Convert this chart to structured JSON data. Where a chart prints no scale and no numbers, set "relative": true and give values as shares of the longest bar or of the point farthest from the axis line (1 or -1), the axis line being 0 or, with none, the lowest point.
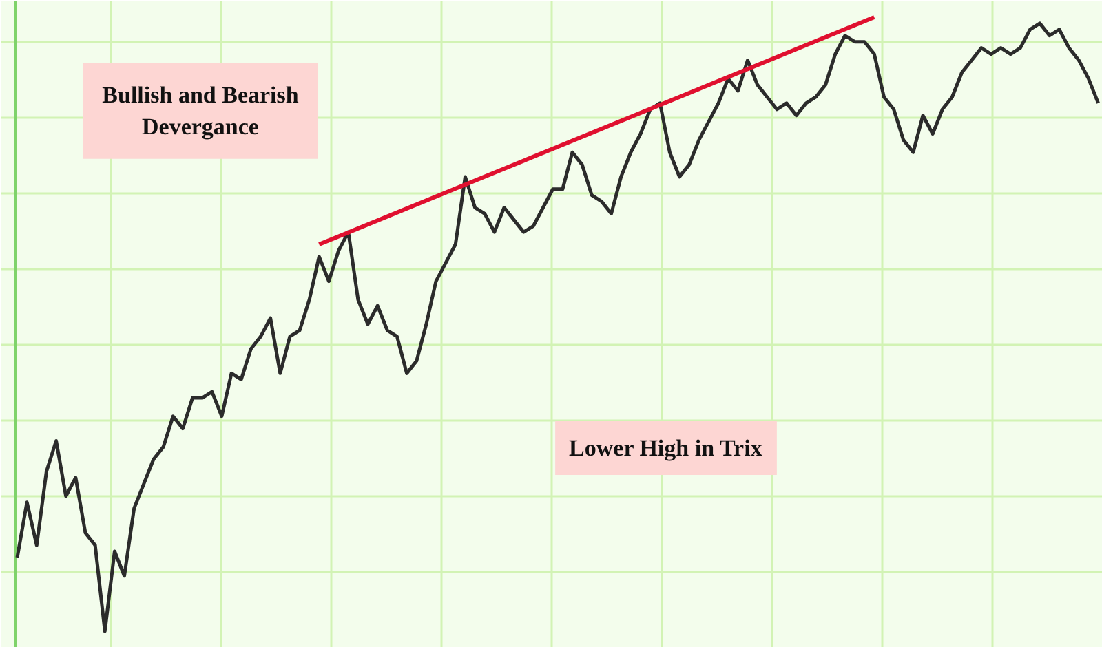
{
  "chart_data": {
    "type": "line",
    "relative": true,
    "grid": true,
    "marker": "none",
    "line_style": "solid",
    "categories": [
      null,
      null,
      null,
      null,
      null,
      null,
      null,
      null,
      null,
      null,
      null,
      null,
      null,
      null,
      null,
      null,
      null,
      null,
      null,
      null,
      null,
      null,
      null,
      null,
      null,
      null,
      null,
      null,
      null,
      null,
      null,
      null,
      null,
      null,
      null,
      null,
      null,
      null,
      null,
      null,
      null,
      null,
      null,
      null,
      null,
      null,
      null,
      null,
      null,
      null,
      null,
      null,
      null,
      null,
      null,
      null,
      null,
      null,
      null,
      null,
      null,
      null,
      null,
      null,
      null,
      null,
      null,
      null,
      null,
      null,
      null,
      null,
      null,
      null,
      null,
      null,
      null,
      null,
      null,
      null,
      null,
      null,
      null,
      null,
      null,
      null,
      null,
      null,
      null,
      null,
      null,
      null,
      null,
      null,
      null,
      null,
      null,
      null,
      null,
      null,
      null,
      null,
      null,
      null,
      null,
      null,
      null,
      null,
      null,
      null,
      null,
      null
    ],
    "series": [
      {
        "color": "#2b2b2b",
        "values": [
          0.12,
          0.21,
          0.14,
          0.26,
          0.31,
          0.22,
          0.25,
          0.16,
          0.14,
          0.0,
          0.13,
          0.09,
          0.2,
          0.24,
          0.28,
          0.3,
          0.35,
          0.33,
          0.38,
          0.38,
          0.39,
          0.35,
          0.42,
          0.41,
          0.46,
          0.48,
          0.51,
          0.42,
          0.48,
          0.49,
          0.54,
          0.61,
          0.57,
          0.62,
          0.65,
          0.54,
          0.5,
          0.53,
          0.49,
          0.48,
          0.42,
          0.44,
          0.5,
          0.57,
          0.6,
          0.63,
          0.74,
          0.69,
          0.68,
          0.65,
          0.69,
          0.67,
          0.65,
          0.66,
          0.69,
          0.72,
          0.72,
          0.78,
          0.76,
          0.71,
          0.7,
          0.68,
          0.74,
          0.78,
          0.81,
          0.85,
          0.86,
          0.78,
          0.74,
          0.76,
          0.8,
          0.83,
          0.86,
          0.9,
          0.88,
          0.93,
          0.89,
          0.87,
          0.85,
          0.86,
          0.84,
          0.86,
          0.87,
          0.89,
          0.94,
          0.97,
          0.96,
          0.96,
          0.94,
          0.87,
          0.85,
          0.8,
          0.78,
          0.84,
          0.81,
          0.85,
          0.87,
          0.91,
          0.93,
          0.95,
          0.94,
          0.95,
          0.94,
          0.95,
          0.98,
          0.99,
          0.97,
          0.98,
          0.95,
          0.93,
          0.9,
          0.86
        ]
      },
      {
        "type": "line",
        "color": "#e0102f",
        "values": [
          null,
          null,
          null,
          null,
          null,
          null,
          null,
          null,
          null,
          null,
          null,
          null,
          null,
          null,
          null,
          null,
          null,
          null,
          null,
          null,
          null,
          null,
          null,
          null,
          null,
          null,
          null,
          null,
          null,
          null,
          null,
          0.63,
          null,
          null,
          null,
          null,
          null,
          null,
          null,
          null,
          null,
          null,
          null,
          null,
          null,
          null,
          null,
          null,
          null,
          null,
          null,
          null,
          null,
          null,
          null,
          null,
          null,
          null,
          null,
          null,
          null,
          null,
          null,
          null,
          null,
          null,
          null,
          null,
          null,
          null,
          null,
          null,
          null,
          null,
          null,
          null,
          null,
          null,
          null,
          null,
          null,
          null,
          null,
          null,
          null,
          null,
          null,
          null,
          1.0,
          null,
          null,
          null,
          null,
          null,
          null,
          null,
          null,
          null,
          null,
          null,
          null,
          null,
          null,
          null,
          null,
          null,
          null,
          null,
          null,
          null,
          null,
          null
        ]
      }
    ],
    "annotations": [
      "Bullish and Bearish\nDevergance",
      "Lower High in Trix"
    ]
  }
}
